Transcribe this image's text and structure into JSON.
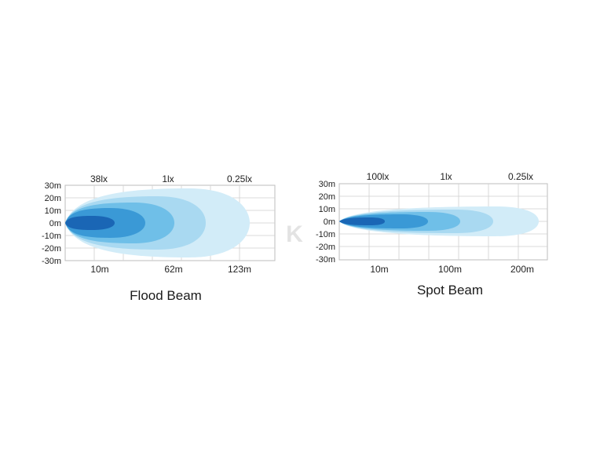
{
  "diagrams": [
    {
      "id": "flood",
      "title": "Flood Beam",
      "lux_labels": [
        "38lx",
        "1lx",
        "0.25lx"
      ],
      "y_labels": [
        "30m",
        "20m",
        "10m",
        "0m",
        "-10m",
        "-20m",
        "-30m"
      ],
      "x_labels": [
        "10m",
        "62m",
        "123m"
      ],
      "beam_colors": [
        "#d2ecf8",
        "#a9d9f1",
        "#6fbfe8",
        "#3a99d6",
        "#1a66b5"
      ]
    },
    {
      "id": "spot",
      "title": "Spot Beam",
      "lux_labels": [
        "100lx",
        "1lx",
        "0.25lx"
      ],
      "y_labels": [
        "30m",
        "20m",
        "10m",
        "0m",
        "-10m",
        "-20m",
        "-30m"
      ],
      "x_labels": [
        "10m",
        "100m",
        "200m"
      ],
      "beam_colors": [
        "#d2ecf8",
        "#a9d9f1",
        "#6fbfe8",
        "#3a99d6",
        "#1a66b5"
      ]
    }
  ],
  "watermark_text": "K"
}
